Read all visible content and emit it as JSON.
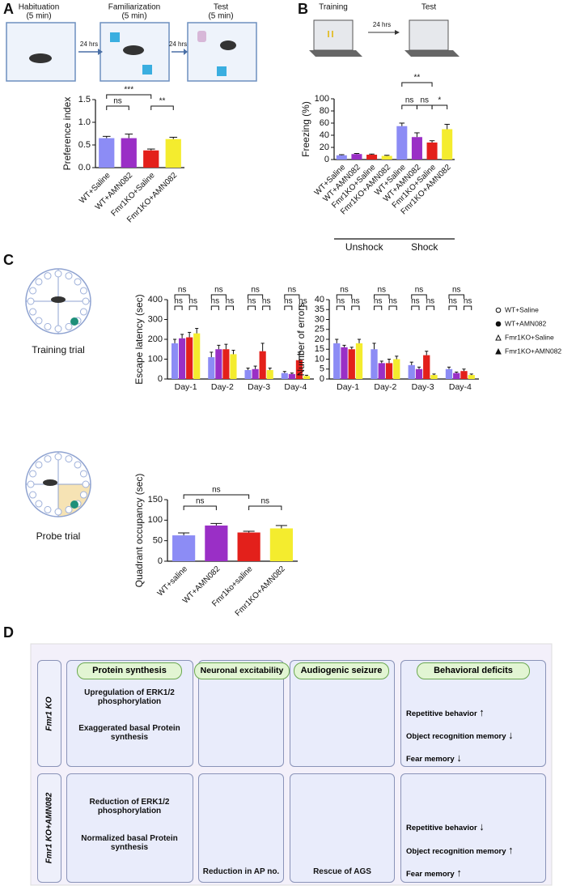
{
  "panel_labels": [
    "A",
    "B",
    "C",
    "D"
  ],
  "schematics": {
    "A": {
      "stages": [
        [
          "Habituation",
          "(5 min)"
        ],
        [
          "Familiarization",
          "(5 min)"
        ],
        [
          "Test",
          "(5 min)"
        ]
      ],
      "intervals": [
        "24 hrs",
        "24 hrs"
      ]
    },
    "B": {
      "stages": [
        "Training",
        "Test"
      ],
      "intervals": [
        "24 hrs"
      ]
    },
    "C": {
      "trials": [
        "Training trial",
        "Probe trial"
      ]
    }
  },
  "chart_data": [
    {
      "type": "bar",
      "ylabel": "Preference index",
      "categories": [
        "WT+Saline",
        "WT+AMN082",
        "Fmr1KO+Saline",
        "Fmr1KO+AMN082"
      ],
      "values": [
        0.65,
        0.65,
        0.38,
        0.63
      ],
      "errors": [
        0.04,
        0.09,
        0.03,
        0.04
      ],
      "colors": [
        "#8c8cf5",
        "#9a2fc6",
        "#e3201b",
        "#f4ec2e"
      ],
      "ylim": [
        0,
        1.5
      ],
      "yticks": [
        {
          "value": 0,
          "label": "0.0"
        },
        {
          "value": 0.5,
          "label": "0.5"
        },
        {
          "value": 1,
          "label": "1.0"
        },
        {
          "value": 1.5,
          "label": "1.5"
        }
      ],
      "brackets": [
        {
          "label": "ns",
          "between": [
            0,
            1
          ]
        },
        {
          "label": "***",
          "between": [
            0,
            2
          ]
        },
        {
          "label": "**",
          "between": [
            2,
            3
          ]
        }
      ]
    },
    {
      "type": "bar",
      "ylabel": "Freezing   (%)",
      "categories": [
        "WT+Saline",
        "WT+AMN082",
        "Fmr1KO+Saline",
        "Fmr1KO+AMN082",
        "WT+Saline",
        "WT+AMN082",
        "Fmr1KO+Saline",
        "Fmr1KO+AMN082"
      ],
      "values": [
        7,
        9,
        8,
        6,
        55,
        37,
        28,
        50
      ],
      "errors": [
        1,
        1,
        1,
        1,
        5,
        7,
        3,
        8
      ],
      "colors": [
        "#8c8cf5",
        "#9a2fc6",
        "#e3201b",
        "#f4ec2e",
        "#8c8cf5",
        "#9a2fc6",
        "#e3201b",
        "#f4ec2e"
      ],
      "ylim": [
        0,
        100
      ],
      "yticks": [
        0,
        20,
        40,
        60,
        80,
        100
      ],
      "groups": [
        {
          "label": "Unshock",
          "span": [
            0,
            3
          ]
        },
        {
          "label": "Shock",
          "span": [
            4,
            7
          ]
        }
      ],
      "brackets": [
        {
          "label": "**",
          "between": [
            4,
            6
          ]
        },
        {
          "label": "ns",
          "between": [
            4,
            5
          ]
        },
        {
          "label": "ns",
          "between": [
            5,
            6
          ]
        },
        {
          "label": "*",
          "between": [
            6,
            7
          ]
        }
      ]
    },
    {
      "type": "grouped_bar",
      "ylabel": "Escape latency (sec)",
      "categories": [
        "Day-1",
        "Day-2",
        "Day-3",
        "Day-4"
      ],
      "series": [
        {
          "name": "WT+Saline",
          "color": "#8c8cf5",
          "values": [
            180,
            110,
            45,
            30
          ],
          "errors": [
            20,
            25,
            10,
            8
          ]
        },
        {
          "name": "WT+AMN082",
          "color": "#9a2fc6",
          "values": [
            205,
            150,
            50,
            25
          ],
          "errors": [
            20,
            20,
            15,
            5
          ]
        },
        {
          "name": "Fmr1KO+Saline",
          "color": "#e3201b",
          "values": [
            210,
            150,
            140,
            95
          ],
          "errors": [
            25,
            25,
            40,
            40
          ]
        },
        {
          "name": "Fmr1KO+AMN082",
          "color": "#f4ec2e",
          "values": [
            230,
            125,
            45,
            15
          ],
          "errors": [
            25,
            20,
            10,
            4
          ]
        }
      ],
      "ylim": [
        0,
        400
      ],
      "yticks": [
        0,
        100,
        200,
        300,
        400
      ],
      "brackets": [
        [
          {
            "label": "ns",
            "between": [
              0,
              2
            ]
          },
          {
            "label": "ns",
            "between": [
              0,
              1
            ]
          },
          {
            "label": "ns",
            "between": [
              2,
              3
            ]
          }
        ],
        [
          {
            "label": "ns",
            "between": [
              0,
              2
            ]
          },
          {
            "label": "ns",
            "between": [
              0,
              1
            ]
          },
          {
            "label": "ns",
            "between": [
              2,
              3
            ]
          }
        ],
        [
          {
            "label": "ns",
            "between": [
              0,
              2
            ]
          },
          {
            "label": "ns",
            "between": [
              0,
              1
            ]
          },
          {
            "label": "ns",
            "between": [
              2,
              3
            ]
          }
        ],
        [
          {
            "label": "ns",
            "between": [
              0,
              2
            ]
          },
          {
            "label": "ns",
            "between": [
              0,
              1
            ]
          },
          {
            "label": "ns",
            "between": [
              2,
              3
            ]
          }
        ]
      ]
    },
    {
      "type": "grouped_bar",
      "ylabel": "Number of errors",
      "legend": "right",
      "categories": [
        "Day-1",
        "Day-2",
        "Day-3",
        "Day-4"
      ],
      "series": [
        {
          "name": "WT+Saline",
          "color": "#8c8cf5",
          "marker": "open-circle",
          "values": [
            18,
            15,
            7,
            5
          ],
          "errors": [
            2,
            3,
            1.5,
            1
          ]
        },
        {
          "name": "WT+AMN082",
          "color": "#9a2fc6",
          "marker": "circle",
          "values": [
            16,
            8,
            5,
            3
          ],
          "errors": [
            1,
            1,
            1,
            0.5
          ]
        },
        {
          "name": "Fmr1KO+Saline",
          "color": "#e3201b",
          "marker": "open-triangle",
          "values": [
            15,
            8,
            12,
            4
          ],
          "errors": [
            1,
            2,
            2,
            1
          ]
        },
        {
          "name": "Fmr1KO+AMN082",
          "color": "#f4ec2e",
          "marker": "triangle",
          "values": [
            18,
            10,
            2,
            2
          ],
          "errors": [
            2,
            1.5,
            0.5,
            0.5
          ]
        }
      ],
      "ylim": [
        0,
        40
      ],
      "yticks": [
        0,
        5,
        10,
        15,
        20,
        25,
        30,
        35,
        40
      ],
      "brackets": [
        [
          {
            "label": "ns",
            "between": [
              0,
              2
            ]
          },
          {
            "label": "ns",
            "between": [
              0,
              1
            ]
          },
          {
            "label": "ns",
            "between": [
              2,
              3
            ]
          }
        ],
        [
          {
            "label": "ns",
            "between": [
              0,
              2
            ]
          },
          {
            "label": "ns",
            "between": [
              0,
              1
            ]
          },
          {
            "label": "ns",
            "between": [
              2,
              3
            ]
          }
        ],
        [
          {
            "label": "ns",
            "between": [
              0,
              2
            ]
          },
          {
            "label": "ns",
            "between": [
              0,
              1
            ]
          },
          {
            "label": "ns",
            "between": [
              2,
              3
            ]
          }
        ],
        [
          {
            "label": "ns",
            "between": [
              0,
              2
            ]
          },
          {
            "label": "ns",
            "between": [
              0,
              1
            ]
          },
          {
            "label": "ns",
            "between": [
              2,
              3
            ]
          }
        ]
      ]
    },
    {
      "type": "bar",
      "ylabel": "Quadrant occupancy (sec)",
      "categories": [
        "WT+saline",
        "WT+AMN082",
        "Fmr1ko+saline",
        "Fmr1KO+AMN082"
      ],
      "values": [
        63,
        87,
        70,
        80
      ],
      "errors": [
        6,
        5,
        3,
        7
      ],
      "colors": [
        "#8c8cf5",
        "#9a2fc6",
        "#e3201b",
        "#f4ec2e"
      ],
      "ylim": [
        0,
        150
      ],
      "yticks": [
        0,
        50,
        100,
        150
      ],
      "brackets": [
        {
          "label": "ns",
          "between": [
            0,
            2
          ]
        },
        {
          "label": "ns",
          "between": [
            0,
            1
          ]
        },
        {
          "label": "ns",
          "between": [
            2,
            3
          ]
        }
      ]
    }
  ],
  "diagram": {
    "columns": [
      "Protein synthesis",
      "Neuronal excitability",
      "Audiogenic seizure",
      "Behavioral deficits"
    ],
    "rows": [
      {
        "label": "Fmr1 KO",
        "protein": [
          "Upregulation of ERK1/2 phosphorylation",
          "Exaggerated basal Protein synthesis"
        ],
        "behavior": [
          {
            "text": "Repetitive behavior",
            "arrow": "↑"
          },
          {
            "text": "Object recognition memory",
            "arrow": "↓"
          },
          {
            "text": "Fear memory",
            "arrow": "↓"
          }
        ]
      },
      {
        "label": "Fmr1 KO+AMN082",
        "protein": [
          "Reduction of ERK1/2 phosphorylation",
          "Normalized basal Protein synthesis"
        ],
        "excitability": "Reduction in AP no.",
        "seizure": "Rescue of AGS",
        "behavior": [
          {
            "text": "Repetitive behavior",
            "arrow": "↓"
          },
          {
            "text": "Object recognition memory",
            "arrow": "↑"
          },
          {
            "text": "Fear memory",
            "arrow": "↑"
          }
        ]
      }
    ]
  }
}
